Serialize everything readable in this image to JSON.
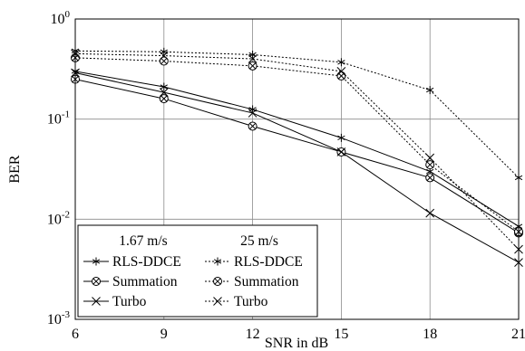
{
  "chart_data": {
    "type": "line",
    "xlabel": "SNR in dB",
    "ylabel": "BER",
    "x": [
      6,
      9,
      12,
      15,
      18,
      21
    ],
    "xlim": [
      6,
      21
    ],
    "ylim": [
      0.001,
      1
    ],
    "yscale": "log",
    "x_ticks": [
      "6",
      "9",
      "12",
      "15",
      "18",
      "21"
    ],
    "y_ticks": [
      {
        "base": "10",
        "exp": "0"
      },
      {
        "base": "10",
        "exp": "-1"
      },
      {
        "base": "10",
        "exp": "-2"
      },
      {
        "base": "10",
        "exp": "-3"
      }
    ],
    "grid": true,
    "legend_position": "bottom-left",
    "legend_headers": [
      "1.67 m/s",
      "25 m/s"
    ],
    "series": [
      {
        "name": "RLS-DDCE",
        "group": "1.67 m/s",
        "style": "solid",
        "marker": "asterisk",
        "values": [
          0.3,
          0.21,
          0.125,
          0.065,
          0.03,
          0.0085
        ]
      },
      {
        "name": "Summation",
        "group": "1.67 m/s",
        "style": "solid",
        "marker": "circle-cross",
        "values": [
          0.25,
          0.16,
          0.085,
          0.047,
          0.026,
          0.0073
        ]
      },
      {
        "name": "Turbo",
        "group": "1.67 m/s",
        "style": "solid",
        "marker": "cross",
        "values": [
          0.29,
          0.185,
          0.115,
          0.047,
          0.0115,
          0.0037
        ]
      },
      {
        "name": "RLS-DDCE",
        "group": "25 m/s",
        "style": "dotted",
        "marker": "asterisk",
        "values": [
          0.48,
          0.47,
          0.44,
          0.37,
          0.195,
          0.026
        ]
      },
      {
        "name": "Summation",
        "group": "25 m/s",
        "style": "dotted",
        "marker": "circle-cross",
        "values": [
          0.41,
          0.38,
          0.34,
          0.27,
          0.035,
          0.0075
        ]
      },
      {
        "name": "Turbo",
        "group": "25 m/s",
        "style": "dotted",
        "marker": "cross",
        "values": [
          0.45,
          0.43,
          0.4,
          0.3,
          0.041,
          0.005
        ]
      }
    ]
  }
}
